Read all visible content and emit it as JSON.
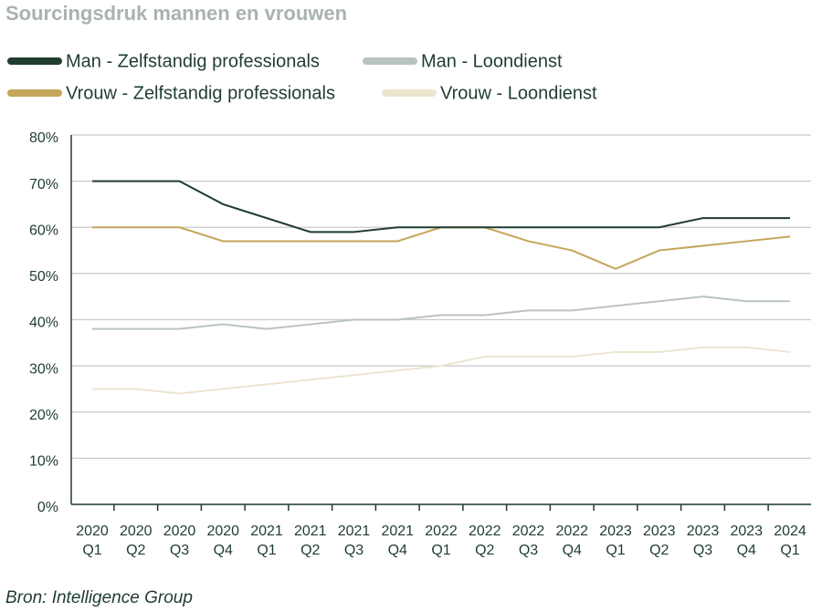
{
  "chart_data": {
    "type": "line",
    "title": "Sourcingsdruk mannen en vrouwen",
    "source": "Bron: Intelligence Group",
    "categories": [
      "2020\nQ1",
      "2020\nQ2",
      "2020\nQ3",
      "2020\nQ4",
      "2021\nQ1",
      "2021\nQ2",
      "2021\nQ3",
      "2021\nQ4",
      "2022\nQ1",
      "2022\nQ2",
      "2022\nQ3",
      "2022\nQ4",
      "2023\nQ1",
      "2023\nQ2",
      "2023\nQ3",
      "2023\nQ4",
      "2024\nQ1"
    ],
    "series": [
      {
        "name": "Man - Zelfstandig professionals",
        "color": "#1f3d2e",
        "values": [
          70,
          70,
          70,
          65,
          62,
          59,
          59,
          60,
          60,
          60,
          60,
          60,
          60,
          60,
          62,
          62,
          62
        ]
      },
      {
        "name": "Man - Loondienst",
        "color": "#b9c3bf",
        "values": [
          38,
          38,
          38,
          39,
          38,
          39,
          40,
          40,
          41,
          41,
          42,
          42,
          43,
          44,
          45,
          44,
          44
        ]
      },
      {
        "name": "Vrouw - Zelfstandig professionals",
        "color": "#c4a55a",
        "values": [
          60,
          60,
          60,
          57,
          57,
          57,
          57,
          57,
          60,
          60,
          57,
          55,
          51,
          55,
          56,
          57,
          58
        ]
      },
      {
        "name": "Vrouw - Loondienst",
        "color": "#ece5cf",
        "values": [
          25,
          25,
          24,
          25,
          26,
          27,
          28,
          29,
          30,
          32,
          32,
          32,
          33,
          33,
          34,
          34,
          33
        ]
      }
    ],
    "ylim": [
      0,
      80
    ],
    "yticks": [
      {
        "value": 0,
        "label": "0%"
      },
      {
        "value": 10,
        "label": "10%"
      },
      {
        "value": 20,
        "label": "20%"
      },
      {
        "value": 30,
        "label": "30%"
      },
      {
        "value": 40,
        "label": "40%"
      },
      {
        "value": 50,
        "label": "50%"
      },
      {
        "value": 60,
        "label": "60%"
      },
      {
        "value": 70,
        "label": "70%"
      },
      {
        "value": 80,
        "label": "80%"
      }
    ],
    "grid": true
  }
}
